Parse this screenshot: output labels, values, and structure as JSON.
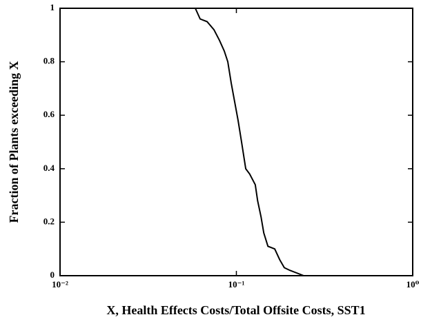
{
  "chart_data": {
    "type": "line",
    "xlabel": "X, Health Effects Costs/Total Offsite Costs, SST1",
    "ylabel": "Fraction of Plants exceeding X",
    "xscale": "log",
    "xlim": [
      0.01,
      1
    ],
    "xticks": [
      {
        "value": 0.01,
        "label": "10⁻²"
      },
      {
        "value": 0.1,
        "label": "10⁻¹"
      },
      {
        "value": 1,
        "label": "10⁰"
      }
    ],
    "ylim": [
      0,
      1
    ],
    "yticks": [
      0,
      0.2,
      0.4,
      0.6,
      0.8,
      1
    ],
    "grid": false,
    "series": [
      {
        "color": "#000000",
        "x": [
          0.01,
          0.0585,
          0.0623,
          0.0682,
          0.0746,
          0.0802,
          0.0854,
          0.0894,
          0.0935,
          0.0978,
          0.1023,
          0.107,
          0.113,
          0.119,
          0.128,
          0.132,
          0.138,
          0.143,
          0.151,
          0.165,
          0.176,
          0.187,
          0.201,
          0.241
        ],
        "values": [
          1,
          1,
          0.96,
          0.95,
          0.92,
          0.88,
          0.84,
          0.8,
          0.72,
          0.65,
          0.58,
          0.5,
          0.4,
          0.38,
          0.34,
          0.28,
          0.22,
          0.16,
          0.11,
          0.1,
          0.06,
          0.03,
          0.02,
          0
        ]
      }
    ]
  }
}
